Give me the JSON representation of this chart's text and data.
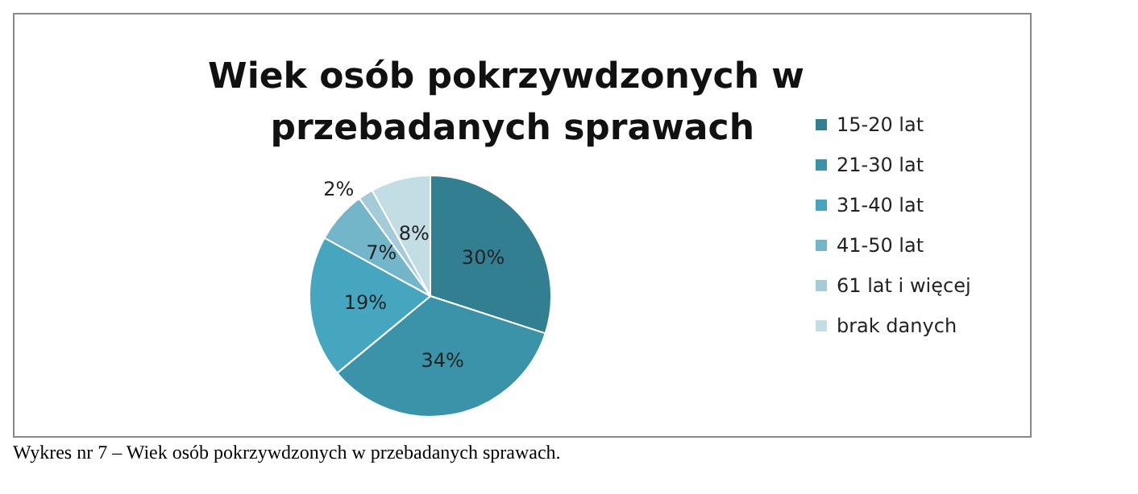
{
  "chart_data": {
    "type": "pie",
    "title": "Wiek osób pokrzywdzonych w przebadanych sprawach",
    "categories": [
      "15-20 lat",
      "21-30 lat",
      "31-40 lat",
      "41-50 lat",
      "61 lat i więcej",
      "brak danych"
    ],
    "values": [
      30,
      34,
      19,
      7,
      2,
      8
    ],
    "value_labels": [
      "30%",
      "34%",
      "19%",
      "7%",
      "2%",
      "8%"
    ],
    "colors": [
      "#337f92",
      "#3b93a9",
      "#46a6bf",
      "#74b6c9",
      "#a3cbd8",
      "#c3dde5"
    ],
    "legend": "right",
    "annotations": [
      "Wykres nr 7 – Wiek osób pokrzywdzonych w przebadanych sprawach."
    ]
  }
}
